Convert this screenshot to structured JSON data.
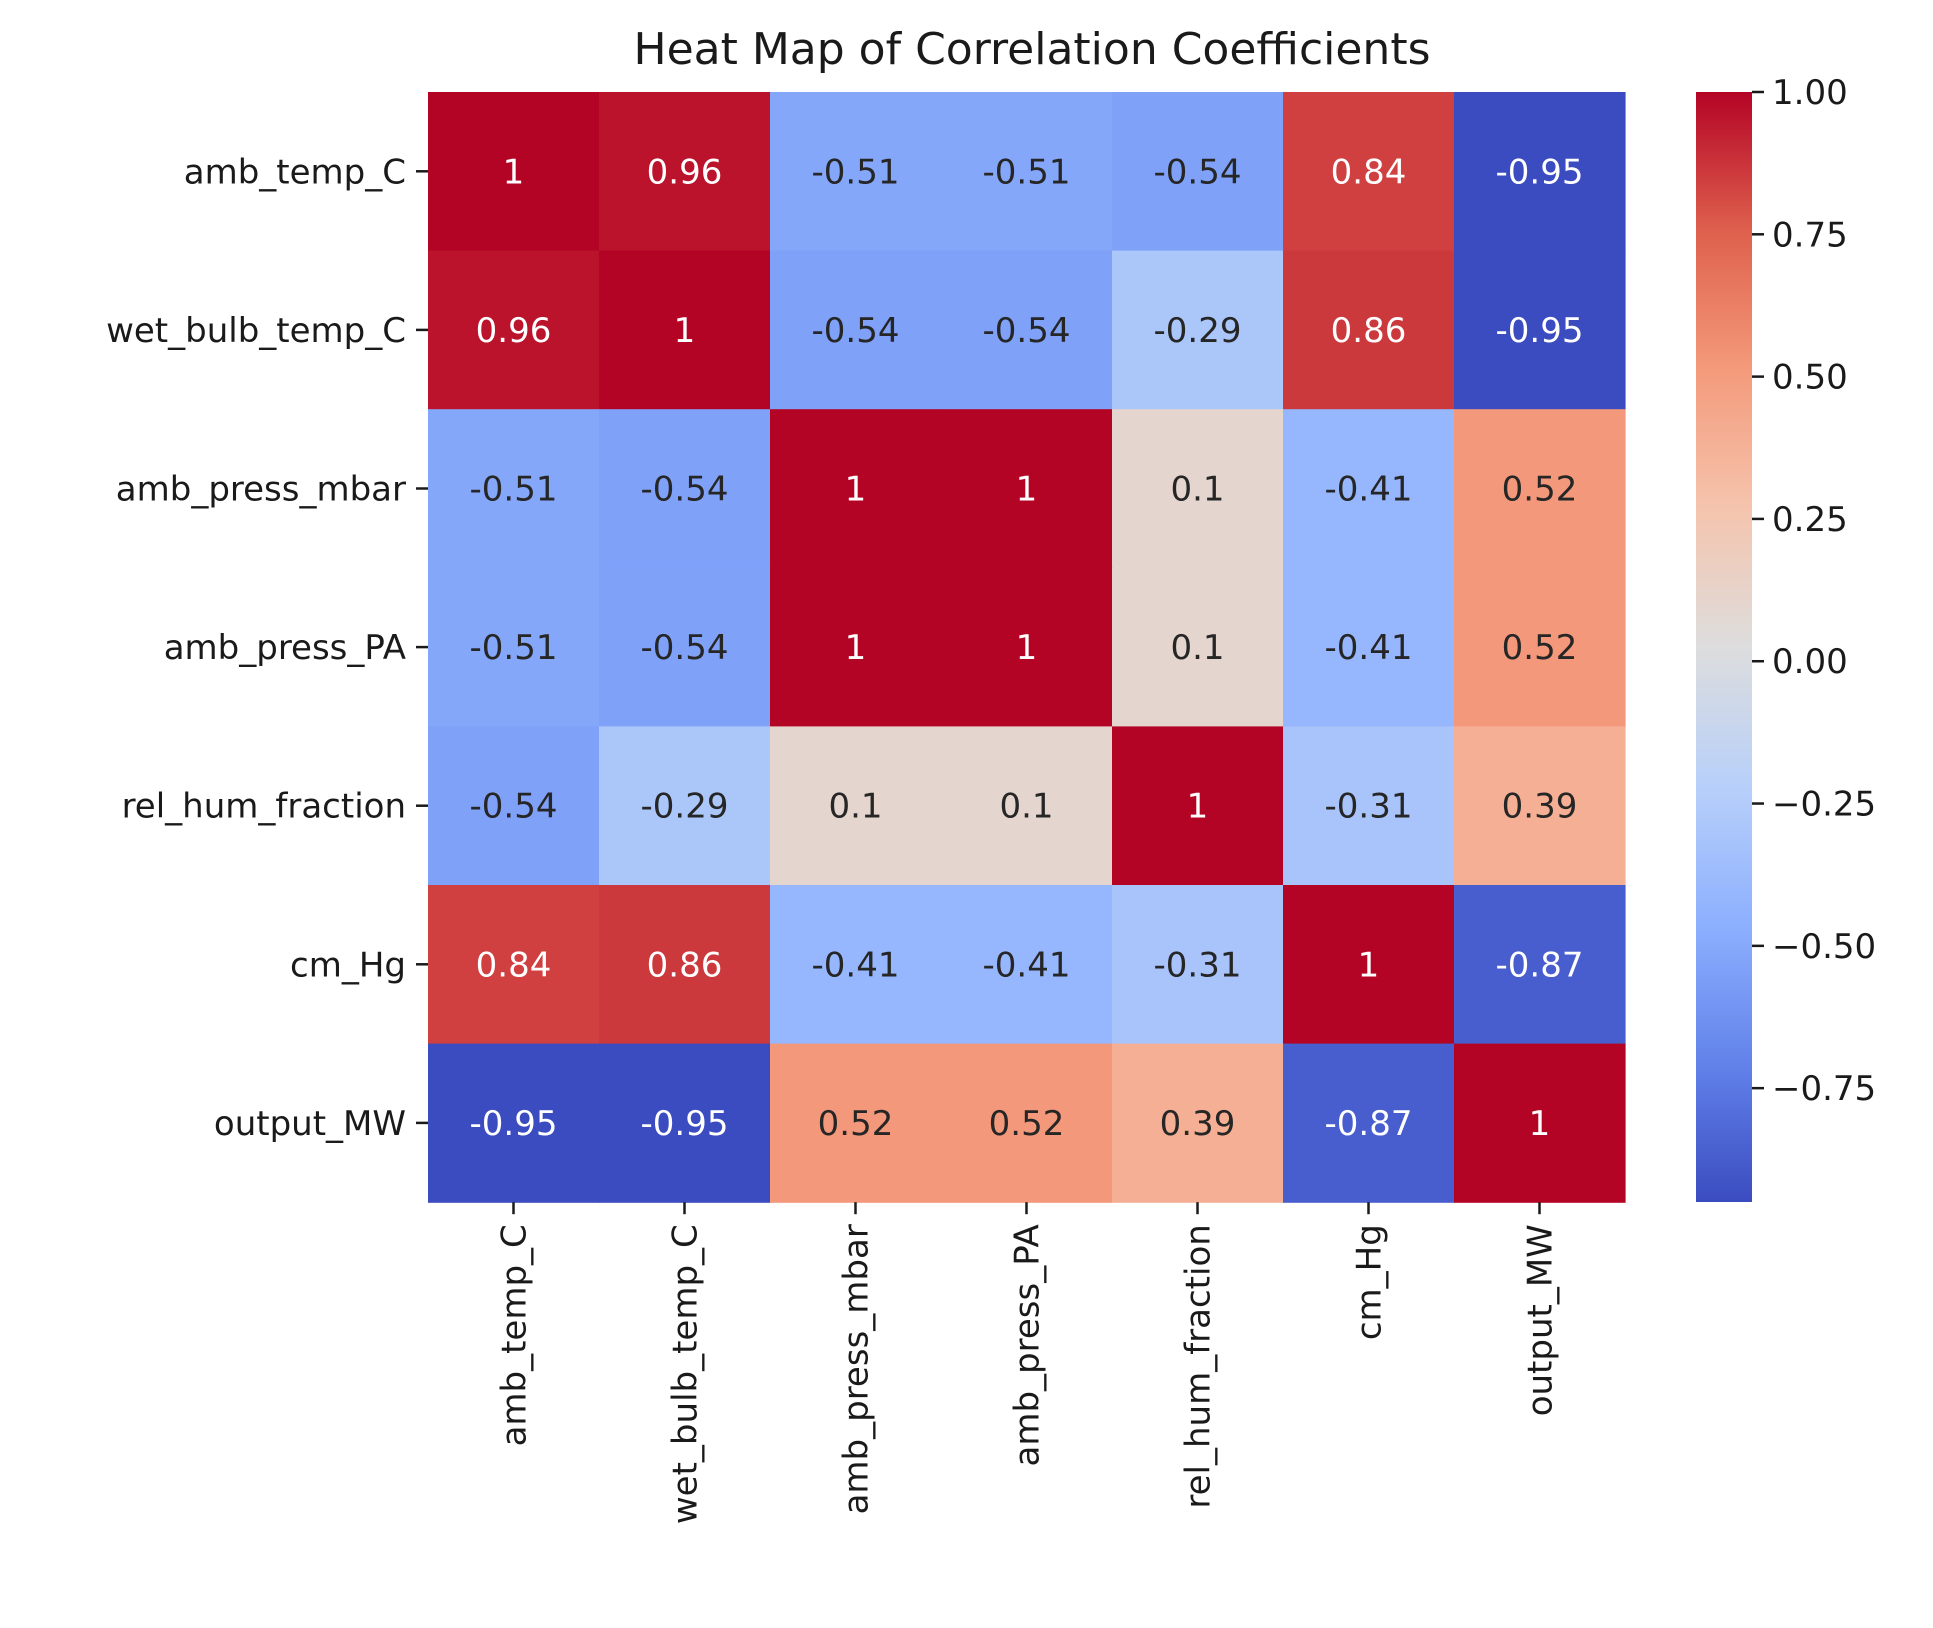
{
  "chart_data": {
    "type": "heatmap",
    "title": "Heat Map of Correlation Coefficients",
    "xlabel": "",
    "ylabel": "",
    "colormap": "coolwarm",
    "rows": [
      "amb_temp_C",
      "wet_bulb_temp_C",
      "amb_press_mbar",
      "amb_press_PA",
      "rel_hum_fraction",
      "cm_Hg",
      "output_MW"
    ],
    "columns": [
      "amb_temp_C",
      "wet_bulb_temp_C",
      "amb_press_mbar",
      "amb_press_PA",
      "rel_hum_fraction",
      "cm_Hg",
      "output_MW"
    ],
    "values": [
      [
        1,
        0.96,
        -0.51,
        -0.51,
        -0.54,
        0.84,
        -0.95
      ],
      [
        0.96,
        1,
        -0.54,
        -0.54,
        -0.29,
        0.86,
        -0.95
      ],
      [
        -0.51,
        -0.54,
        1,
        1,
        0.1,
        -0.41,
        0.52
      ],
      [
        -0.51,
        -0.54,
        1,
        1,
        0.1,
        -0.41,
        0.52
      ],
      [
        -0.54,
        -0.29,
        0.1,
        0.1,
        1,
        -0.31,
        0.39
      ],
      [
        0.84,
        0.86,
        -0.41,
        -0.41,
        -0.31,
        1,
        -0.87
      ],
      [
        -0.95,
        -0.95,
        0.52,
        0.52,
        0.39,
        -0.87,
        1
      ]
    ],
    "colorbar": {
      "min": -0.95,
      "max": 1.0,
      "ticks": [
        "1.00",
        "0.75",
        "0.50",
        "0.25",
        "0.00",
        "−0.25",
        "−0.50",
        "−0.75"
      ],
      "tick_values": [
        1.0,
        0.75,
        0.5,
        0.25,
        0.0,
        -0.25,
        -0.5,
        -0.75
      ]
    }
  }
}
